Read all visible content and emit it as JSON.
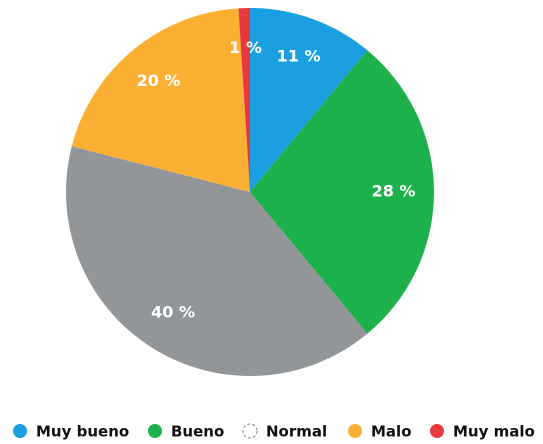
{
  "chart_data": {
    "type": "pie",
    "categories": [
      "Muy bueno",
      "Bueno",
      "Normal",
      "Malo",
      "Muy malo"
    ],
    "values": [
      11,
      28,
      40,
      20,
      1
    ],
    "value_labels": [
      "11 %",
      "28 %",
      "40 %",
      "20 %",
      "1 %"
    ],
    "colors": [
      "#1a9fe0",
      "#1db14b",
      "#939698",
      "#fbb034",
      "#e8383f"
    ],
    "legend": "bottom"
  }
}
